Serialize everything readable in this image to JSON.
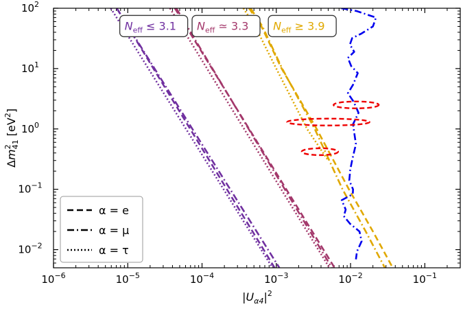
{
  "chart_data": {
    "type": "line",
    "xlabel": "|U_α4|^2",
    "ylabel": "Δm^2_41 [eV^2]",
    "xscale": "log",
    "yscale": "log",
    "xlim": [
      1e-06,
      0.3
    ],
    "ylim": [
      0.005,
      100
    ],
    "x_ticks": [
      {
        "value": 1e-06,
        "base": "10",
        "exp": "−6"
      },
      {
        "value": 1e-05,
        "base": "10",
        "exp": "−5"
      },
      {
        "value": 0.0001,
        "base": "10",
        "exp": "−4"
      },
      {
        "value": 0.001,
        "base": "10",
        "exp": "−3"
      },
      {
        "value": 0.01,
        "base": "10",
        "exp": "−2"
      },
      {
        "value": 0.1,
        "base": "10",
        "exp": "−1"
      }
    ],
    "y_ticks": [
      {
        "value": 0.01,
        "base": "10",
        "exp": "−2"
      },
      {
        "value": 0.1,
        "base": "10",
        "exp": "−1"
      },
      {
        "value": 1,
        "base": "10",
        "exp": "0"
      },
      {
        "value": 10,
        "base": "10",
        "exp": "1"
      },
      {
        "value": 100,
        "base": "10",
        "exp": "2"
      }
    ],
    "annotations": [
      {
        "text_main": "N",
        "text_sub": "eff",
        "text_rel": " ≤ 3.1",
        "color": "#7030a0",
        "x": 8.5e-06,
        "y": 50
      },
      {
        "text_main": "N",
        "text_sub": "eff",
        "text_rel": " ≃ 3.3",
        "color": "#a3386b",
        "x": 8e-05,
        "y": 50
      },
      {
        "text_main": "N",
        "text_sub": "eff",
        "text_rel": " ≥ 3.9",
        "color": "#e0a800",
        "x": 0.00085,
        "y": 50
      }
    ],
    "legend": {
      "position": "lower-left",
      "entries": [
        {
          "label": "α = e",
          "linestyle": "dashed"
        },
        {
          "label": "α = μ",
          "linestyle": "dashdot"
        },
        {
          "label": "α = τ",
          "linestyle": "dotted"
        }
      ]
    },
    "series": [
      {
        "group": "N_eff ≤ 3.1",
        "color": "#7030a0",
        "linestyle": "dashed",
        "x": [
          7.1e-06,
          0.00095
        ],
        "y": [
          100,
          0.005
        ]
      },
      {
        "group": "N_eff ≤ 3.1",
        "color": "#7030a0",
        "linestyle": "dashdot",
        "x": [
          7.1e-06,
          0.0011
        ],
        "y": [
          100,
          0.005
        ]
      },
      {
        "group": "N_eff ≤ 3.1",
        "color": "#7030a0",
        "linestyle": "dotted",
        "x": [
          5.9e-06,
          0.00089
        ],
        "y": [
          100,
          0.005
        ]
      },
      {
        "group": "N_eff ≃ 3.3",
        "color": "#a3386b",
        "linestyle": "dashed",
        "x": [
          4.3e-05,
          0.0061
        ],
        "y": [
          100,
          0.005
        ]
      },
      {
        "group": "N_eff ≃ 3.3",
        "color": "#a3386b",
        "linestyle": "dashdot",
        "x": [
          4.5e-05,
          0.0056
        ],
        "y": [
          100,
          0.005
        ]
      },
      {
        "group": "N_eff ≃ 3.3",
        "color": "#a3386b",
        "linestyle": "dotted",
        "x": [
          3.7e-05,
          0.0052
        ],
        "y": [
          100,
          0.005
        ]
      },
      {
        "group": "N_eff ≥ 3.9",
        "color": "#e0a800",
        "linestyle": "dashed",
        "x": [
          0.00043,
          0.00063,
          0.00118,
          0.0035,
          0.0095,
          0.02,
          0.037
        ],
        "y": [
          100,
          50,
          10,
          1,
          0.1,
          0.02,
          0.005
        ]
      },
      {
        "group": "N_eff ≥ 3.9",
        "color": "#e0a800",
        "linestyle": "dashdot",
        "x": [
          0.00045,
          0.00065,
          0.0012,
          0.0033,
          0.0078,
          0.016,
          0.029
        ],
        "y": [
          100,
          50,
          10,
          1,
          0.1,
          0.02,
          0.005
        ]
      },
      {
        "group": "N_eff ≥ 3.9",
        "color": "#e0a800",
        "linestyle": "dotted",
        "x": [
          0.00036,
          0.00052,
          0.001,
          0.0026,
          0.005
        ],
        "y": [
          100,
          50,
          10,
          1,
          0.3
        ]
      },
      {
        "group": "blue limit",
        "color": "#0000ee",
        "linestyle": "dashdot",
        "x": [
          0.0075,
          0.012,
          0.022,
          0.02,
          0.014,
          0.0105,
          0.0098,
          0.0112,
          0.0092,
          0.0102,
          0.0125,
          0.0108,
          0.0092,
          0.011,
          0.0128,
          0.0108,
          0.0112,
          0.0118,
          0.0106,
          0.0099,
          0.0096,
          0.0108,
          0.0107,
          0.0076,
          0.0086,
          0.0081,
          0.0098,
          0.0132,
          0.0141,
          0.0122,
          0.0118
        ],
        "y": [
          100,
          90,
          70,
          50,
          38,
          32,
          25,
          19,
          15,
          11,
          8.4,
          5.4,
          3.9,
          2.82,
          1.85,
          1.2,
          0.87,
          0.56,
          0.32,
          0.21,
          0.14,
          0.1,
          0.083,
          0.066,
          0.046,
          0.036,
          0.027,
          0.02,
          0.0138,
          0.0093,
          0.0069
        ]
      }
    ],
    "ellipses": [
      {
        "color": "#ee0000",
        "linestyle": "dashed",
        "x_range": [
          0.0059,
          0.024
        ],
        "y": 2.5
      },
      {
        "color": "#ee0000",
        "linestyle": "dashed",
        "x_range": [
          0.0014,
          0.018
        ],
        "y": 1.3
      },
      {
        "color": "#ee0000",
        "linestyle": "dashed",
        "x_range": [
          0.0022,
          0.0068
        ],
        "y": 0.42
      }
    ]
  }
}
